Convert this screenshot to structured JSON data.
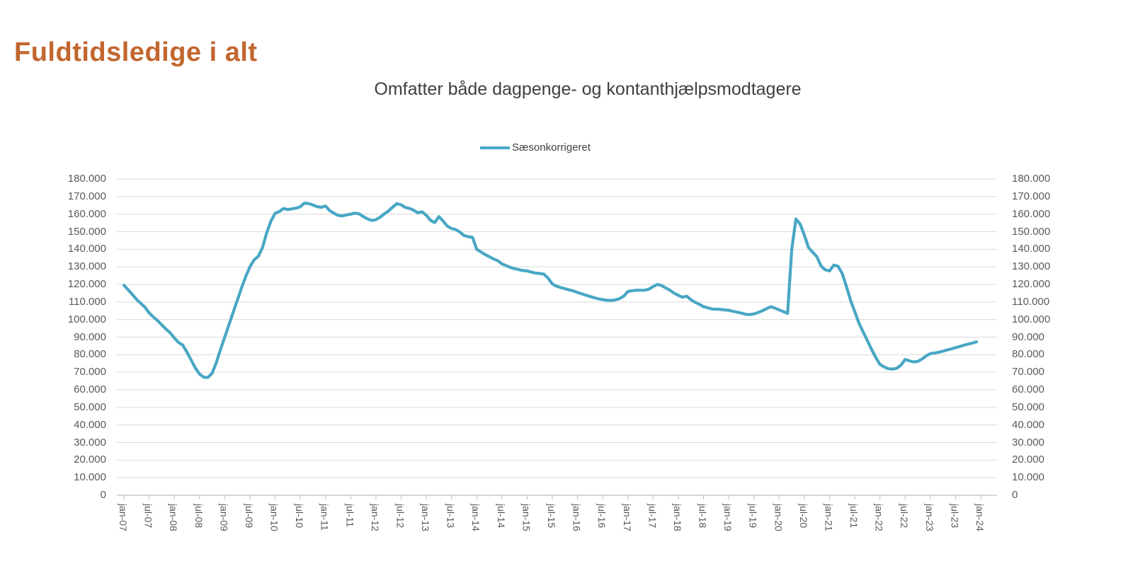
{
  "page": {
    "title": "Fuldtidsledige i alt"
  },
  "legend": {
    "series_label": "Sæsonkorrigeret"
  },
  "colors": {
    "title": "#C2662F",
    "subtitle": "#3F3F3F",
    "axis_label": "#595959",
    "gridline": "#D9D9D9",
    "axis_line": "#BFBFBF",
    "line": "#48A7C4",
    "background": "#FFFFFF"
  },
  "chart_data": {
    "type": "line",
    "title": "Omfatter både dagpenge- og kontanthjælpsmodtagere",
    "xlabel": "",
    "ylabel": "",
    "ylim": [
      0,
      180000
    ],
    "y_tick_step": 10000,
    "grid": "horizontal",
    "legend_position": "top-center",
    "dual_y_axis": true,
    "y_tick_labels": [
      "0",
      "10.000",
      "20.000",
      "30.000",
      "40.000",
      "50.000",
      "60.000",
      "70.000",
      "80.000",
      "90.000",
      "100.000",
      "110.000",
      "120.000",
      "130.000",
      "140.000",
      "150.000",
      "160.000",
      "170.000",
      "180.000"
    ],
    "x_tick_labels": [
      "jan-07",
      "jul-07",
      "jan-08",
      "jul-08",
      "jan-09",
      "jul-09",
      "jan-10",
      "jul-10",
      "jan-11",
      "jul-11",
      "jan-12",
      "jul-12",
      "jan-13",
      "jul-13",
      "jan-14",
      "jul-14",
      "jan-15",
      "jul-15",
      "jan-16",
      "jul-16",
      "jan-17",
      "jul-17",
      "jan-18",
      "jul-18",
      "jan-19",
      "jul-19",
      "jan-20",
      "jul-20",
      "jan-21",
      "jul-21",
      "jan-22",
      "jul-22",
      "jan-23",
      "jul-23",
      "jan-24"
    ],
    "series": [
      {
        "name": "Sæsonkorrigeret",
        "color": "#48A7C4",
        "start": "2007-01",
        "end": "2023-12",
        "frequency": "monthly",
        "values": [
          119500,
          117000,
          114300,
          111500,
          109300,
          107000,
          103800,
          101500,
          99400,
          97000,
          94600,
          92500,
          89500,
          87000,
          85500,
          81500,
          77000,
          72500,
          69000,
          67200,
          67000,
          69500,
          75500,
          83000,
          90000,
          97000,
          104000,
          111000,
          118000,
          124500,
          130000,
          134000,
          136000,
          141000,
          149500,
          156000,
          160500,
          161500,
          163200,
          162600,
          163000,
          163400,
          164200,
          166300,
          166000,
          165200,
          164300,
          163900,
          164600,
          162000,
          160500,
          159300,
          159000,
          159600,
          160000,
          160600,
          160200,
          158600,
          157300,
          156400,
          156900,
          158200,
          160200,
          161800,
          164000,
          166000,
          165300,
          163800,
          163300,
          162200,
          160800,
          161300,
          159300,
          156500,
          155200,
          158600,
          156000,
          153200,
          151800,
          151200,
          149800,
          147800,
          147200,
          146800,
          140000,
          138500,
          137000,
          135800,
          134500,
          133500,
          131700,
          130700,
          129700,
          129000,
          128400,
          127900,
          127700,
          127000,
          126500,
          126200,
          125900,
          123500,
          120300,
          119000,
          118200,
          117600,
          116900,
          116300,
          115400,
          114700,
          113900,
          113100,
          112400,
          111800,
          111300,
          111000,
          110900,
          111200,
          111900,
          113300,
          116000,
          116400,
          116700,
          116700,
          116700,
          117300,
          118800,
          120000,
          119400,
          118000,
          116700,
          115000,
          113800,
          112700,
          113300,
          111300,
          109800,
          108700,
          107300,
          106700,
          106000,
          105900,
          105800,
          105500,
          105300,
          104700,
          104200,
          103700,
          103000,
          102800,
          103200,
          104000,
          105000,
          106200,
          107300,
          106500,
          105500,
          104500,
          103500,
          140000,
          157300,
          154300,
          148000,
          141000,
          138300,
          135700,
          130400,
          128300,
          127700,
          131000,
          130400,
          126300,
          119000,
          111000,
          104500,
          98000,
          93000,
          88000,
          83000,
          78500,
          74500,
          73000,
          72000,
          71800,
          72300,
          74000,
          77300,
          76500,
          75900,
          76200,
          77500,
          79300,
          80600,
          81000,
          81400,
          82000,
          82700,
          83300,
          84000,
          84700,
          85400,
          86000,
          86600,
          87300
        ]
      }
    ]
  }
}
